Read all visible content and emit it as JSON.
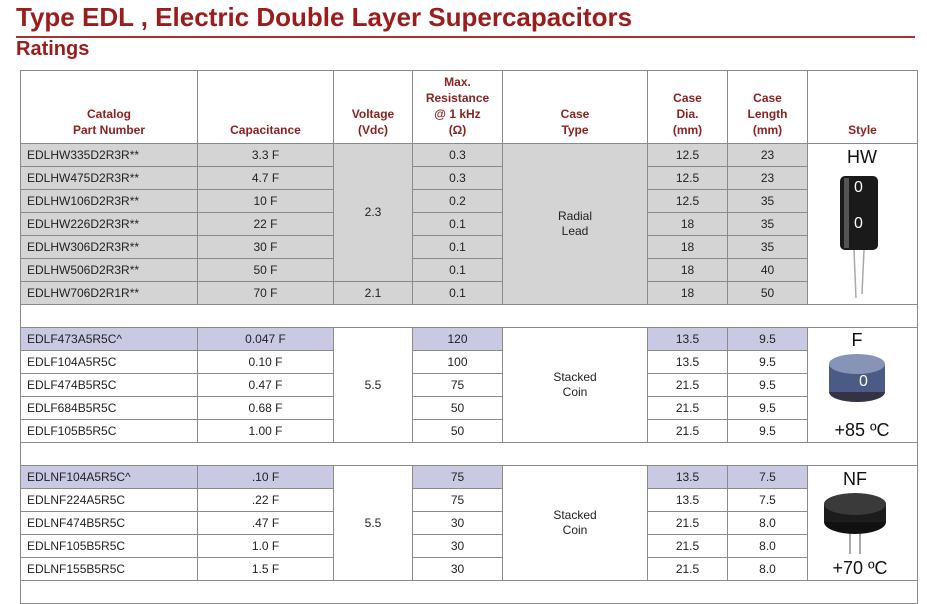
{
  "header": {
    "title": "Type EDL , Electric Double Layer Supercapacitors",
    "subtitle": "Ratings"
  },
  "table": {
    "columns": [
      [
        "Catalog",
        "Part Number"
      ],
      [
        "Capacitance"
      ],
      [
        "Voltage",
        "(Vdc)"
      ],
      [
        "Max.",
        "Resistance",
        "@ 1 kHz",
        "(Ω)"
      ],
      [
        "Case",
        "Type"
      ],
      [
        "Case",
        "Dia.",
        "(mm)"
      ],
      [
        "Case",
        "Length",
        "(mm)"
      ],
      [
        "Style"
      ]
    ],
    "groups": [
      {
        "rows": [
          [
            "EDLHW335D2R3R**",
            "3.3 F",
            "2.3",
            "0.3",
            [
              "Radial",
              "Lead"
            ],
            "12.5",
            "23"
          ],
          [
            "EDLHW475D2R3R**",
            "4.7 F",
            null,
            "0.3",
            null,
            "12.5",
            "23"
          ],
          [
            "EDLHW106D2R3R**",
            "10 F",
            null,
            "0.2",
            null,
            "12.5",
            "35"
          ],
          [
            "EDLHW226D2R3R**",
            "22 F",
            null,
            "0.1",
            null,
            "18",
            "35"
          ],
          [
            "EDLHW306D2R3R**",
            "30 F",
            null,
            "0.1",
            null,
            "18",
            "35"
          ],
          [
            "EDLHW506D2R3R**",
            "50 F",
            null,
            "0.1",
            null,
            "18",
            "40"
          ],
          [
            "EDLHW706D2R1R**",
            "70 F",
            "2.1",
            "0.1",
            null,
            "18",
            "50"
          ]
        ],
        "style": {
          "label": "HW"
        }
      },
      {
        "rows": [
          [
            "EDLF473A5R5C^",
            "0.047 F",
            "5.5",
            "120",
            [
              "Stacked",
              "Coin"
            ],
            "13.5",
            "9.5"
          ],
          [
            "EDLF104A5R5C",
            "0.10 F",
            null,
            "100",
            null,
            "13.5",
            "9.5"
          ],
          [
            "EDLF474B5R5C",
            "0.47 F",
            null,
            "75",
            null,
            "21.5",
            "9.5"
          ],
          [
            "EDLF684B5R5C",
            "0.68 F",
            null,
            "50",
            null,
            "21.5",
            "9.5"
          ],
          [
            "EDLF105B5R5C",
            "1.00 F",
            null,
            "50",
            null,
            "21.5",
            "9.5"
          ]
        ],
        "style": {
          "label": "F",
          "note": "+85 ºC"
        }
      },
      {
        "rows": [
          [
            "EDLNF104A5R5C^",
            ".10 F",
            "5.5",
            "75",
            [
              "Stacked",
              "Coin"
            ],
            "13.5",
            "7.5"
          ],
          [
            "EDLNF224A5R5C",
            ".22 F",
            null,
            "75",
            null,
            "13.5",
            "7.5"
          ],
          [
            "EDLNF474B5R5C",
            ".47 F",
            null,
            "30",
            null,
            "21.5",
            "8.0"
          ],
          [
            "EDLNF105B5R5C",
            "1.0 F",
            null,
            "30",
            null,
            "21.5",
            "8.0"
          ],
          [
            "EDLNF155B5R5C",
            "1.5 F",
            null,
            "30",
            null,
            "21.5",
            "8.0"
          ]
        ],
        "style": {
          "label": "NF",
          "note": "+70 ºC"
        }
      }
    ]
  }
}
